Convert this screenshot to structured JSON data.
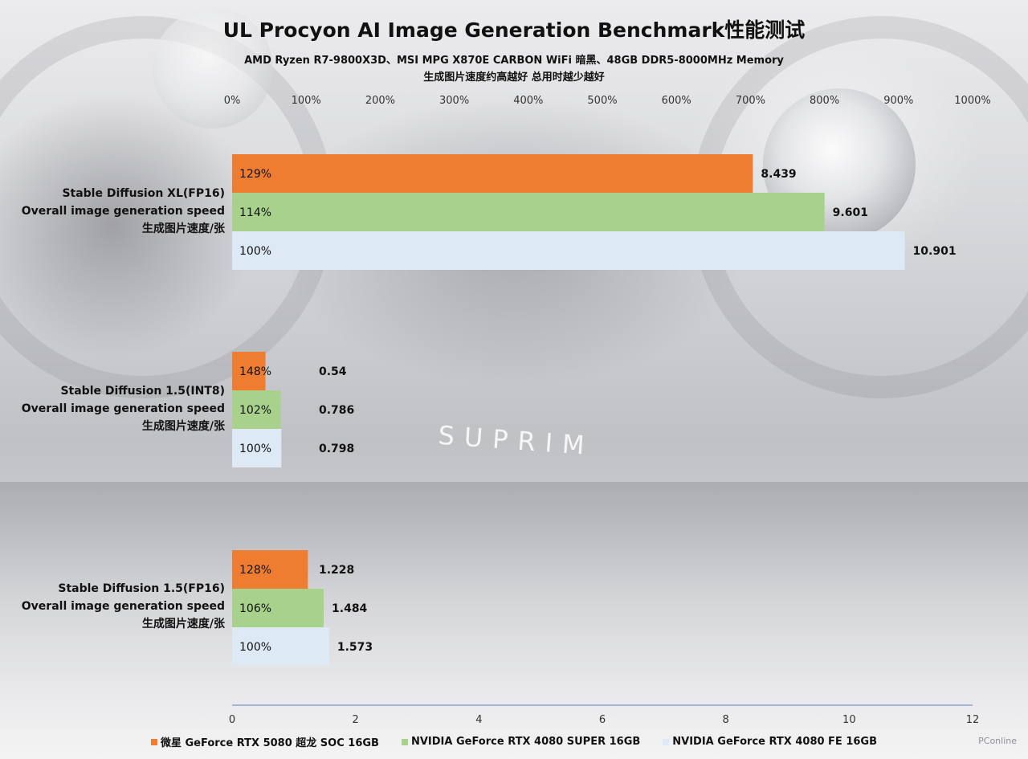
{
  "title": "UL Procyon AI Image Generation Benchmark性能测试",
  "subtitle_line1": "AMD Ryzen R7-9800X3D、MSI MPG X870E CARBON WiFi 暗黑、48GB DDR5-8000MHz Memory",
  "subtitle_line2": "生成图片速度约高越好 总用时越少越好",
  "background": {
    "brand_text": "SUPRIM",
    "watermark": "PConline"
  },
  "chart_data": {
    "type": "bar",
    "orientation": "horizontal",
    "categories": [
      {
        "line1": "Stable Diffusion XL(FP16)",
        "line2": "Overall image generation speed",
        "line3": "生成图片速度/张"
      },
      {
        "line1": "Stable Diffusion 1.5(INT8)",
        "line2": "Overall image generation speed",
        "line3": "生成图片速度/张"
      },
      {
        "line1": "Stable Diffusion 1.5(FP16)",
        "line2": "Overall image generation speed",
        "line3": "生成图片速度/张"
      }
    ],
    "series": [
      {
        "name": "微星 GeForce RTX 5080 超龙 SOC 16GB",
        "color": "#ef7d31",
        "values": [
          8.439,
          0.54,
          1.228
        ],
        "value_labels": [
          "8.439",
          "0.54",
          "1.228"
        ],
        "percent_labels": [
          "129%",
          "148%",
          "128%"
        ]
      },
      {
        "name": "NVIDIA GeForce RTX 4080 SUPER 16GB",
        "color": "#a8d18c",
        "values": [
          9.601,
          0.786,
          1.484
        ],
        "value_labels": [
          "9.601",
          "0.786",
          "1.484"
        ],
        "percent_labels": [
          "114%",
          "102%",
          "106%"
        ]
      },
      {
        "name": "NVIDIA GeForce RTX 4080 FE 16GB",
        "color": "#ddeaf6",
        "values": [
          10.901,
          0.798,
          1.573
        ],
        "value_labels": [
          "10.901",
          "0.798",
          "1.573"
        ],
        "percent_labels": [
          "100%",
          "100%",
          "100%"
        ]
      }
    ],
    "x_axis_bottom": {
      "min": 0,
      "max": 12,
      "step": 2,
      "tick_labels": [
        "0",
        "2",
        "4",
        "6",
        "8",
        "10",
        "12"
      ]
    },
    "x_axis_top": {
      "min": 0,
      "max": 1000,
      "step": 100,
      "tick_labels": [
        "0%",
        "100%",
        "200%",
        "300%",
        "400%",
        "500%",
        "600%",
        "700%",
        "800%",
        "900%",
        "1000%"
      ]
    },
    "grid": false,
    "legend_position": "bottom"
  }
}
